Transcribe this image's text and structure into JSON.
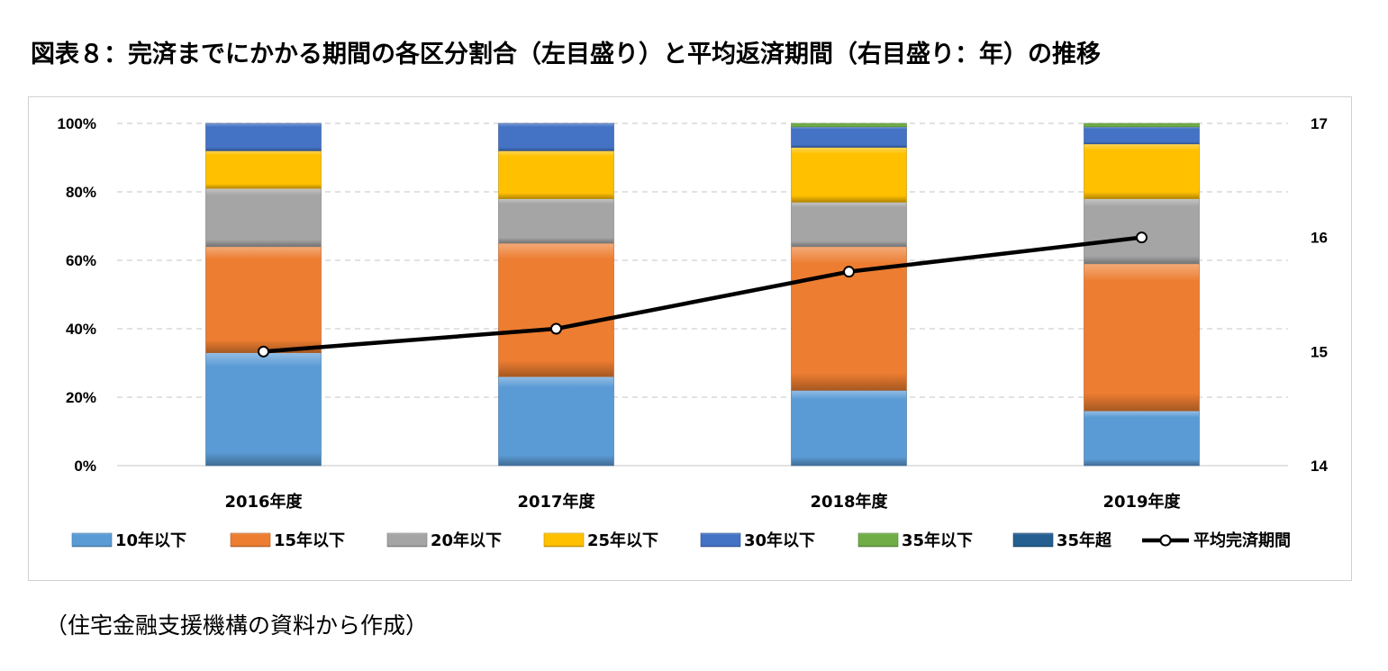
{
  "title": "図表８：完済までにかかる期間の各区分割合（左目盛り）と平均返済期間（右目盛り：年）の推移",
  "source": "（住宅金融支援機構の資料から作成）",
  "chart_data": {
    "type": "bar",
    "stacked": true,
    "categories": [
      "2016年度",
      "2017年度",
      "2018年度",
      "2019年度"
    ],
    "series": [
      {
        "name": "10年以下",
        "color": "#5b9bd5",
        "values": [
          33,
          26,
          22,
          16
        ]
      },
      {
        "name": "15年以下",
        "color": "#ed7d31",
        "values": [
          31,
          39,
          42,
          43
        ]
      },
      {
        "name": "20年以下",
        "color": "#a5a5a5",
        "values": [
          17,
          13,
          13,
          19
        ]
      },
      {
        "name": "25年以下",
        "color": "#ffc000",
        "values": [
          11,
          14,
          16,
          16
        ]
      },
      {
        "name": "30年以下",
        "color": "#4472c4",
        "values": [
          8,
          8,
          6,
          5
        ]
      },
      {
        "name": "35年以下",
        "color": "#70ad47",
        "values": [
          0,
          0,
          1,
          1
        ]
      },
      {
        "name": "35年超",
        "color": "#255e91",
        "values": [
          0,
          0,
          0,
          0
        ]
      }
    ],
    "line": {
      "name": "平均完済期間",
      "axis": "right",
      "color": "#000000",
      "values": [
        15.0,
        15.2,
        15.7,
        16.0
      ]
    },
    "ylim": [
      0,
      100
    ],
    "y_ticks": [
      "0%",
      "20%",
      "40%",
      "60%",
      "80%",
      "100%"
    ],
    "y2lim": [
      14,
      17
    ],
    "y2_ticks": [
      "14",
      "15",
      "16",
      "17"
    ],
    "grid": true,
    "legend_position": "bottom"
  }
}
